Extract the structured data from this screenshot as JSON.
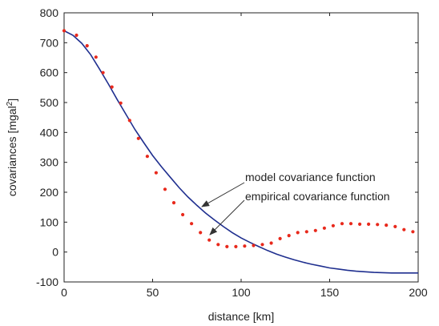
{
  "chart_data": {
    "type": "line",
    "title": "",
    "xlabel": "distance [km]",
    "ylabel": "covariances [mgal",
    "ylabel_sup": "2",
    "ylabel_close": "]",
    "xlim": [
      0,
      200
    ],
    "ylim": [
      -100,
      800
    ],
    "x_ticks": [
      "0",
      "50",
      "100",
      "150",
      "200"
    ],
    "y_ticks": [
      "-100",
      "0",
      "100",
      "200",
      "300",
      "400",
      "500",
      "600",
      "700",
      "800"
    ],
    "grid": false,
    "series": [
      {
        "name": "model covariance function",
        "style": "line",
        "color": "#1f2f8f",
        "x": [
          0,
          5,
          10,
          15,
          20,
          25,
          30,
          35,
          40,
          45,
          50,
          55,
          60,
          65,
          70,
          75,
          80,
          85,
          90,
          95,
          100,
          105,
          110,
          115,
          120,
          125,
          130,
          135,
          140,
          145,
          150,
          155,
          160,
          165,
          170,
          175,
          180,
          185,
          190,
          195,
          200
        ],
        "y": [
          740,
          725,
          698,
          660,
          612,
          562,
          510,
          460,
          410,
          366,
          323,
          285,
          250,
          215,
          184,
          156,
          130,
          107,
          85,
          65,
          47,
          32,
          18,
          5,
          -7,
          -17,
          -26,
          -34,
          -41,
          -47,
          -53,
          -57,
          -61,
          -64,
          -66,
          -68,
          -69,
          -70,
          -70,
          -70,
          -70
        ]
      },
      {
        "name": "empirical covariance function",
        "style": "dots",
        "color": "#e8291c",
        "x": [
          0,
          7,
          13,
          18,
          22,
          27,
          32,
          37,
          42,
          47,
          52,
          57,
          62,
          67,
          72,
          77,
          82,
          87,
          92,
          97,
          102,
          107,
          112,
          117,
          122,
          127,
          132,
          137,
          142,
          147,
          152,
          157,
          162,
          167,
          172,
          177,
          182,
          187,
          192,
          197
        ],
        "y": [
          740,
          725,
          690,
          652,
          600,
          552,
          498,
          440,
          380,
          320,
          265,
          210,
          165,
          125,
          95,
          65,
          40,
          25,
          18,
          18,
          20,
          22,
          25,
          30,
          45,
          55,
          65,
          68,
          72,
          80,
          88,
          95,
          95,
          93,
          93,
          92,
          90,
          85,
          75,
          68
        ]
      }
    ],
    "annotations": [
      {
        "text": "model covariance function",
        "target_series": 0
      },
      {
        "text": "empirical covariance function",
        "target_series": 1
      }
    ]
  }
}
